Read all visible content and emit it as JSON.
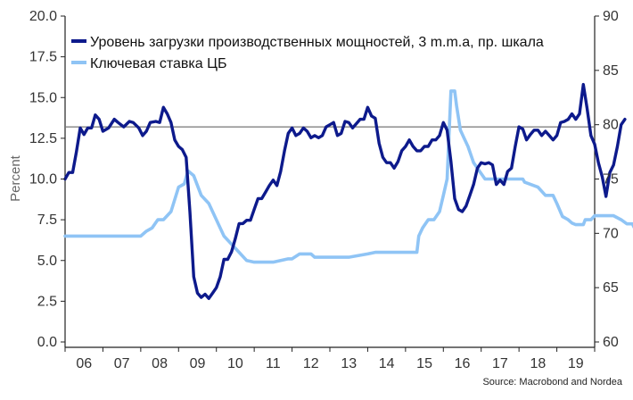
{
  "chart_data": {
    "type": "line",
    "ylabel": "Percent",
    "source": "Source: Macrobond and Nordea",
    "x_tick_labels": [
      "06",
      "07",
      "08",
      "09",
      "10",
      "11",
      "12",
      "13",
      "14",
      "15",
      "16",
      "17",
      "18",
      "19"
    ],
    "ylim_left": [
      0,
      20
    ],
    "ylim_right": [
      60,
      90
    ],
    "yticks_left": [
      "0.0",
      "2.5",
      "5.0",
      "7.5",
      "10.0",
      "12.5",
      "15.0",
      "17.5",
      "20.0"
    ],
    "yticks_right": [
      "60",
      "65",
      "70",
      "75",
      "80",
      "85",
      "90"
    ],
    "reference_line": {
      "axis": "right",
      "value": 79.8
    },
    "colors": {
      "series1": "#0d1a8c",
      "series2": "#8fc4f5",
      "reference": "#777777"
    },
    "series": [
      {
        "name": "Уровень загрузки производственных мощностей, 3 m.m.a, пр. шкала",
        "axis": "right",
        "points": [
          [
            2006.0,
            75.0
          ],
          [
            2006.1,
            75.6
          ],
          [
            2006.2,
            75.6
          ],
          [
            2006.3,
            77.5
          ],
          [
            2006.4,
            79.7
          ],
          [
            2006.5,
            79.1
          ],
          [
            2006.6,
            79.7
          ],
          [
            2006.7,
            79.7
          ],
          [
            2006.8,
            80.9
          ],
          [
            2006.9,
            80.5
          ],
          [
            2007.0,
            79.4
          ],
          [
            2007.15,
            79.7
          ],
          [
            2007.3,
            80.5
          ],
          [
            2007.4,
            80.2
          ],
          [
            2007.55,
            79.8
          ],
          [
            2007.7,
            80.3
          ],
          [
            2007.8,
            80.2
          ],
          [
            2007.95,
            79.7
          ],
          [
            2008.05,
            79.0
          ],
          [
            2008.15,
            79.4
          ],
          [
            2008.25,
            80.2
          ],
          [
            2008.4,
            80.3
          ],
          [
            2008.5,
            80.2
          ],
          [
            2008.6,
            81.6
          ],
          [
            2008.7,
            81.0
          ],
          [
            2008.8,
            80.2
          ],
          [
            2008.9,
            78.6
          ],
          [
            2009.0,
            78.0
          ],
          [
            2009.1,
            77.7
          ],
          [
            2009.2,
            77.0
          ],
          [
            2009.3,
            72.0
          ],
          [
            2009.4,
            66.0
          ],
          [
            2009.5,
            64.5
          ],
          [
            2009.6,
            64.1
          ],
          [
            2009.7,
            64.4
          ],
          [
            2009.8,
            64.0
          ],
          [
            2009.9,
            64.5
          ],
          [
            2010.0,
            65.0
          ],
          [
            2010.1,
            66.0
          ],
          [
            2010.2,
            67.6
          ],
          [
            2010.3,
            67.6
          ],
          [
            2010.4,
            68.3
          ],
          [
            2010.5,
            69.5
          ],
          [
            2010.6,
            70.9
          ],
          [
            2010.7,
            70.9
          ],
          [
            2010.8,
            71.2
          ],
          [
            2010.9,
            71.2
          ],
          [
            2011.0,
            72.2
          ],
          [
            2011.1,
            73.2
          ],
          [
            2011.2,
            73.2
          ],
          [
            2011.3,
            73.8
          ],
          [
            2011.4,
            74.4
          ],
          [
            2011.5,
            74.9
          ],
          [
            2011.6,
            74.4
          ],
          [
            2011.7,
            75.7
          ],
          [
            2011.8,
            77.6
          ],
          [
            2011.9,
            79.2
          ],
          [
            2012.0,
            79.7
          ],
          [
            2012.1,
            79.0
          ],
          [
            2012.2,
            79.2
          ],
          [
            2012.3,
            79.7
          ],
          [
            2012.4,
            79.4
          ],
          [
            2012.5,
            78.8
          ],
          [
            2012.6,
            79.0
          ],
          [
            2012.7,
            78.8
          ],
          [
            2012.8,
            79.0
          ],
          [
            2012.9,
            79.8
          ],
          [
            2013.0,
            80.0
          ],
          [
            2013.1,
            80.2
          ],
          [
            2013.2,
            79.0
          ],
          [
            2013.3,
            79.2
          ],
          [
            2013.4,
            80.3
          ],
          [
            2013.5,
            80.2
          ],
          [
            2013.6,
            79.7
          ],
          [
            2013.7,
            80.1
          ],
          [
            2013.8,
            80.5
          ],
          [
            2013.9,
            80.5
          ],
          [
            2014.0,
            81.6
          ],
          [
            2014.1,
            80.8
          ],
          [
            2014.2,
            80.6
          ],
          [
            2014.3,
            78.3
          ],
          [
            2014.4,
            77.0
          ],
          [
            2014.5,
            76.5
          ],
          [
            2014.6,
            76.5
          ],
          [
            2014.7,
            76.0
          ],
          [
            2014.8,
            76.6
          ],
          [
            2014.9,
            77.6
          ],
          [
            2015.0,
            78.0
          ],
          [
            2015.1,
            78.6
          ],
          [
            2015.2,
            78.0
          ],
          [
            2015.3,
            77.6
          ],
          [
            2015.4,
            77.6
          ],
          [
            2015.5,
            78.0
          ],
          [
            2015.6,
            78.0
          ],
          [
            2015.7,
            78.6
          ],
          [
            2015.8,
            78.6
          ],
          [
            2015.9,
            79.0
          ],
          [
            2016.0,
            80.2
          ],
          [
            2016.1,
            79.5
          ],
          [
            2016.2,
            76.6
          ],
          [
            2016.3,
            73.2
          ],
          [
            2016.4,
            72.2
          ],
          [
            2016.5,
            72.0
          ],
          [
            2016.6,
            72.5
          ],
          [
            2016.7,
            73.5
          ],
          [
            2016.8,
            74.5
          ],
          [
            2016.9,
            76.0
          ],
          [
            2017.0,
            76.5
          ],
          [
            2017.1,
            76.4
          ],
          [
            2017.2,
            76.5
          ],
          [
            2017.3,
            76.3
          ],
          [
            2017.4,
            74.5
          ],
          [
            2017.5,
            74.9
          ],
          [
            2017.6,
            74.5
          ],
          [
            2017.7,
            75.7
          ],
          [
            2017.8,
            76.0
          ],
          [
            2017.9,
            78.0
          ],
          [
            2018.0,
            79.8
          ],
          [
            2018.1,
            79.6
          ],
          [
            2018.2,
            78.6
          ],
          [
            2018.3,
            79.1
          ],
          [
            2018.4,
            79.5
          ],
          [
            2018.5,
            79.5
          ],
          [
            2018.6,
            79.0
          ],
          [
            2018.7,
            79.4
          ],
          [
            2018.8,
            79.0
          ],
          [
            2018.9,
            78.6
          ],
          [
            2019.0,
            79.0
          ],
          [
            2019.1,
            80.2
          ],
          [
            2019.2,
            80.3
          ],
          [
            2019.3,
            80.5
          ],
          [
            2019.4,
            81.0
          ],
          [
            2019.5,
            80.5
          ],
          [
            2019.6,
            81.0
          ],
          [
            2019.7,
            83.7
          ],
          [
            2019.8,
            81.5
          ],
          [
            2019.9,
            79.0
          ],
          [
            2020.0,
            78.2
          ],
          [
            2020.1,
            76.5
          ],
          [
            2020.2,
            75.2
          ],
          [
            2020.3,
            73.4
          ],
          [
            2020.4,
            75.6
          ],
          [
            2020.5,
            76.3
          ],
          [
            2020.6,
            78.0
          ],
          [
            2020.7,
            80.0
          ],
          [
            2020.8,
            80.5
          ]
        ]
      },
      {
        "name": "Ключевая ставка ЦБ",
        "axis": "left",
        "points": [
          [
            2006.0,
            6.5
          ],
          [
            2007.5,
            6.5
          ],
          [
            2008.0,
            6.5
          ],
          [
            2008.15,
            6.8
          ],
          [
            2008.3,
            7.0
          ],
          [
            2008.45,
            7.5
          ],
          [
            2008.6,
            7.5
          ],
          [
            2008.8,
            8.0
          ],
          [
            2009.0,
            9.5
          ],
          [
            2009.15,
            9.7
          ],
          [
            2009.25,
            10.5
          ],
          [
            2009.4,
            10.2
          ],
          [
            2009.6,
            9.0
          ],
          [
            2009.8,
            8.5
          ],
          [
            2010.0,
            7.5
          ],
          [
            2010.2,
            6.5
          ],
          [
            2010.4,
            6.0
          ],
          [
            2010.6,
            5.5
          ],
          [
            2010.8,
            5.0
          ],
          [
            2011.0,
            4.9
          ],
          [
            2011.5,
            4.9
          ],
          [
            2011.9,
            5.1
          ],
          [
            2012.0,
            5.1
          ],
          [
            2012.2,
            5.4
          ],
          [
            2012.5,
            5.4
          ],
          [
            2012.6,
            5.2
          ],
          [
            2013.0,
            5.2
          ],
          [
            2013.5,
            5.2
          ],
          [
            2014.0,
            5.4
          ],
          [
            2014.2,
            5.5
          ],
          [
            2015.1,
            5.5
          ],
          [
            2015.3,
            5.5
          ],
          [
            2015.35,
            6.5
          ],
          [
            2015.45,
            7.0
          ],
          [
            2015.6,
            7.5
          ],
          [
            2015.75,
            7.5
          ],
          [
            2015.9,
            8.0
          ],
          [
            2016.0,
            9.0
          ],
          [
            2016.1,
            10.0
          ],
          [
            2016.2,
            15.4
          ],
          [
            2016.3,
            15.4
          ],
          [
            2016.35,
            14.5
          ],
          [
            2016.45,
            13.0
          ],
          [
            2016.55,
            12.5
          ],
          [
            2016.65,
            12.0
          ],
          [
            2016.8,
            11.0
          ],
          [
            2016.95,
            10.5
          ],
          [
            2017.1,
            10.0
          ],
          [
            2017.25,
            10.0
          ],
          [
            2018.1,
            10.0
          ],
          [
            2018.15,
            9.8
          ],
          [
            2018.5,
            9.5
          ],
          [
            2018.7,
            9.0
          ],
          [
            2018.9,
            9.0
          ],
          [
            2019.0,
            8.5
          ],
          [
            2019.15,
            7.7
          ],
          [
            2019.3,
            7.5
          ],
          [
            2019.4,
            7.3
          ],
          [
            2019.5,
            7.2
          ],
          [
            2019.7,
            7.2
          ],
          [
            2019.75,
            7.5
          ],
          [
            2019.9,
            7.5
          ],
          [
            2020.0,
            7.75
          ],
          [
            2020.5,
            7.75
          ],
          [
            2020.7,
            7.5
          ],
          [
            2020.85,
            7.25
          ],
          [
            2021.0,
            7.25
          ],
          [
            2021.1,
            6.75
          ],
          [
            2021.2,
            6.5
          ]
        ]
      }
    ]
  }
}
